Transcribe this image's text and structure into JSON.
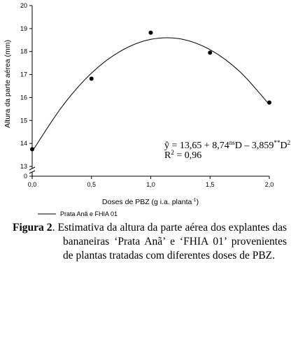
{
  "chart_data": {
    "type": "scatter",
    "xlabel": {
      "text": "Doses de PBZ (g i.a. planta",
      "sup": "-1",
      "end": ")"
    },
    "ylabel": "Altura da parte aérea (mm)",
    "xlim": [
      0,
      2
    ],
    "xticks": [
      {
        "value": 0,
        "label": "0,0"
      },
      {
        "value": 0.5,
        "label": "0,5"
      },
      {
        "value": 1,
        "label": "1,0"
      },
      {
        "value": 1.5,
        "label": "1,5"
      },
      {
        "value": 2,
        "label": "2,0"
      }
    ],
    "ylim": [
      13,
      20
    ],
    "yticks": [
      13,
      14,
      15,
      16,
      17,
      18,
      19,
      20
    ],
    "yticks_below_break": [
      0
    ],
    "series": [
      {
        "color": "#000000",
        "x": [
          0,
          0.5,
          1,
          1.5,
          2
        ],
        "values": [
          13.75,
          16.82,
          18.82,
          17.95,
          15.78
        ]
      },
      {
        "name": "Prata Anã e FHIA 01",
        "type": "line",
        "color": "#000000",
        "x": [
          0,
          0.25,
          0.5,
          0.75,
          1,
          1.25,
          1.5,
          1.75,
          2
        ],
        "values": [
          13.65,
          15.59,
          17.06,
          18.03,
          18.53,
          18.55,
          18.08,
          17.13,
          15.69
        ]
      }
    ],
    "equation": [
      "ŷ = 13,65 + 8,74",
      "ns",
      "D – 3,859",
      "**",
      "D",
      "2"
    ],
    "r2": [
      "R",
      "2",
      " = 0,96"
    ]
  },
  "caption": {
    "label": "Figura 2",
    "text": ". Estimativa da altura da parte aérea dos explantes das bananeiras ‘Prata Anã’ e ‘FHIA 01’ provenientes de plantas tratadas com diferentes doses de PBZ."
  }
}
